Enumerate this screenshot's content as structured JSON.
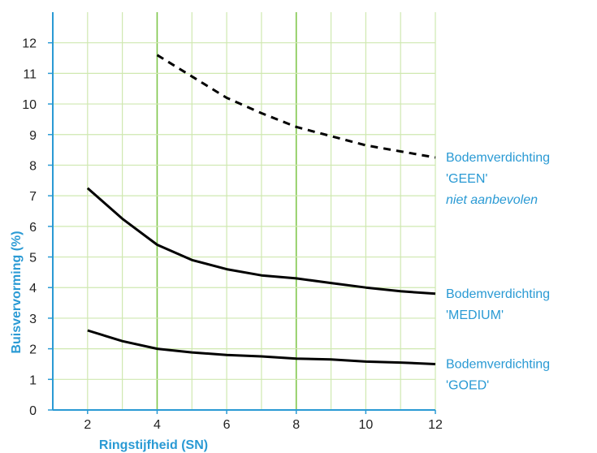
{
  "colors": {
    "axis": "#2a9ad4",
    "grid": "#cfe8b0",
    "grid_major": "#7fc64a",
    "line": "#000000",
    "label": "#2a9ad4",
    "tick": "#222222"
  },
  "chart_data": {
    "type": "line",
    "title": "",
    "xlabel": "Ringstijfheid (SN)",
    "ylabel": "Buisvervorming (%)",
    "xlim": [
      1,
      12
    ],
    "ylim": [
      0,
      13
    ],
    "x_ticks": [
      2,
      4,
      6,
      8,
      10,
      12
    ],
    "y_ticks": [
      0,
      1,
      2,
      3,
      4,
      5,
      6,
      7,
      8,
      9,
      10,
      11,
      12
    ],
    "x_tick_labels": [
      "2",
      "4",
      "6",
      "8",
      "10",
      "12"
    ],
    "y_tick_labels": [
      "0",
      "1",
      "2",
      "3",
      "4",
      "5",
      "6",
      "7",
      "8",
      "9",
      "10",
      "11",
      "12"
    ],
    "grid": true,
    "series": [
      {
        "labels": [
          "Bodemverdichting",
          "'GEEN'",
          "niet aanbevolen"
        ],
        "style": "dashed",
        "x": [
          4,
          5,
          6,
          7,
          8,
          9,
          10,
          11,
          12
        ],
        "y": [
          11.6,
          10.9,
          10.2,
          9.7,
          9.25,
          8.95,
          8.65,
          8.45,
          8.25
        ]
      },
      {
        "labels": [
          "Bodemverdichting",
          "'MEDIUM'"
        ],
        "style": "solid",
        "x": [
          2,
          3,
          4,
          5,
          6,
          7,
          8,
          9,
          10,
          11,
          12
        ],
        "y": [
          7.25,
          6.25,
          5.4,
          4.9,
          4.6,
          4.4,
          4.3,
          4.15,
          4.0,
          3.88,
          3.8
        ]
      },
      {
        "labels": [
          "Bodemverdichting",
          "'GOED'"
        ],
        "style": "solid",
        "x": [
          2,
          3,
          4,
          5,
          6,
          7,
          8,
          9,
          10,
          11,
          12
        ],
        "y": [
          2.6,
          2.25,
          2.0,
          1.88,
          1.8,
          1.75,
          1.68,
          1.65,
          1.58,
          1.55,
          1.5
        ]
      }
    ]
  }
}
